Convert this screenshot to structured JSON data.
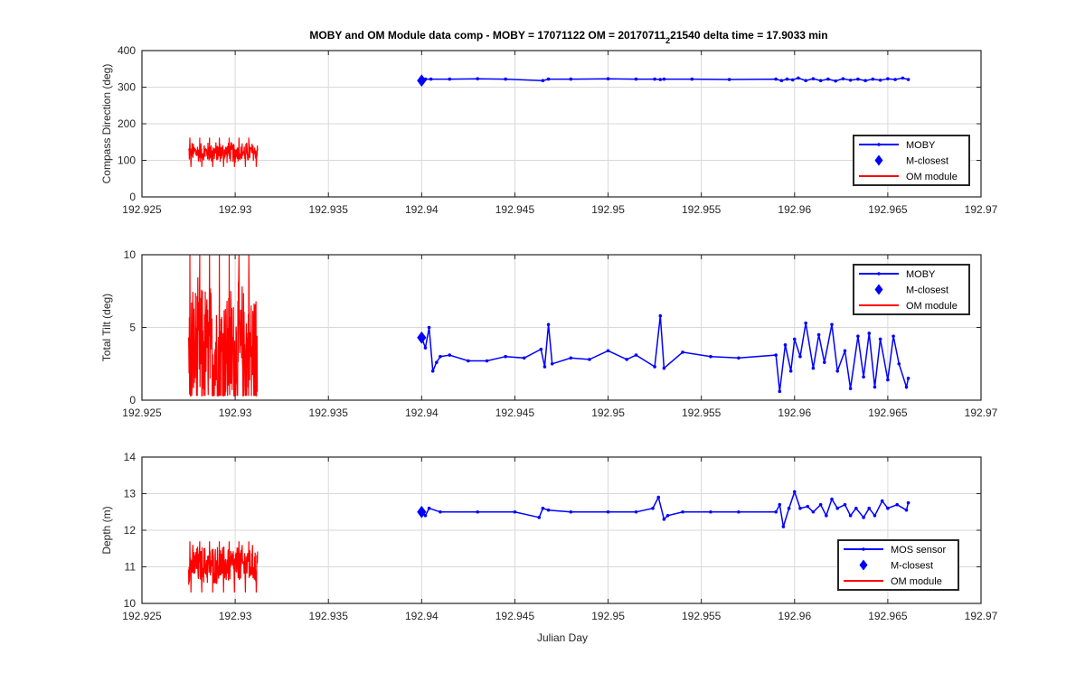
{
  "figure": {
    "title_prefix": "MOBY and OM Module data comp - MOBY = 17071122 OM = 20170711",
    "title_subscript": "2",
    "title_suffix": "21540 delta time = 17.9033 min",
    "xlabel": "Julian Day"
  },
  "colors": {
    "moby": "#0000ff",
    "om": "#ff0000",
    "grid": "#d9d9d9",
    "axis": "#262626"
  },
  "chart_data": [
    {
      "type": "line",
      "ylabel": "Compass Direction (deg)",
      "xlim": [
        192.925,
        192.97
      ],
      "ylim": [
        0,
        400
      ],
      "x_ticks": [
        192.925,
        192.93,
        192.935,
        192.94,
        192.945,
        192.95,
        192.955,
        192.96,
        192.965,
        192.97
      ],
      "x_tick_labels": [
        "192.925",
        "192.93",
        "192.935",
        "192.94",
        "192.945",
        "192.95",
        "192.955",
        "192.96",
        "192.965",
        "192.97"
      ],
      "y_ticks": [
        0,
        100,
        200,
        300,
        400
      ],
      "y_tick_labels": [
        "0",
        "100",
        "200",
        "300",
        "400"
      ],
      "grid": true,
      "legend": {
        "placement": "bottom-right",
        "entries": [
          "MOBY",
          "M-closest",
          "OM module"
        ]
      },
      "series": [
        {
          "name": "MOBY",
          "style": "line-dots",
          "color": "#0000ff",
          "x": [
            192.94,
            192.9402,
            192.9405,
            192.9415,
            192.943,
            192.9445,
            192.9465,
            192.9468,
            192.948,
            192.95,
            192.9515,
            192.9525,
            192.9528,
            192.953,
            192.9545,
            192.9565,
            192.959,
            192.9593,
            192.9596,
            192.9599,
            192.9602,
            192.9606,
            192.961,
            192.9614,
            192.9618,
            192.9622,
            192.9626,
            192.963,
            192.9634,
            192.9638,
            192.9642,
            192.9646,
            192.965,
            192.9654,
            192.9658,
            192.9661
          ],
          "y": [
            318,
            322,
            322,
            322,
            323,
            322,
            318,
            322,
            322,
            323,
            322,
            322,
            321,
            322,
            322,
            321,
            322,
            318,
            322,
            320,
            325,
            318,
            323,
            318,
            322,
            317,
            323,
            319,
            322,
            318,
            322,
            319,
            323,
            321,
            325,
            321
          ]
        },
        {
          "name": "M-closest",
          "style": "diamond",
          "color": "#0000ff",
          "x": [
            192.94
          ],
          "y": [
            318
          ]
        },
        {
          "name": "OM module",
          "style": "noise",
          "color": "#ff0000",
          "x_range": [
            192.9275,
            192.9312
          ],
          "y_range": [
            82,
            162
          ],
          "y_center": 122
        }
      ]
    },
    {
      "type": "line",
      "ylabel": "Total Tilt (deg)",
      "xlim": [
        192.925,
        192.97
      ],
      "ylim": [
        0,
        10
      ],
      "x_ticks": [
        192.925,
        192.93,
        192.935,
        192.94,
        192.945,
        192.95,
        192.955,
        192.96,
        192.965,
        192.97
      ],
      "x_tick_labels": [
        "192.925",
        "192.93",
        "192.935",
        "192.94",
        "192.945",
        "192.95",
        "192.955",
        "192.96",
        "192.965",
        "192.97"
      ],
      "y_ticks": [
        0,
        5,
        10
      ],
      "y_tick_labels": [
        "0",
        "5",
        "10"
      ],
      "grid": true,
      "legend": {
        "placement": "top-right",
        "entries": [
          "MOBY",
          "M-closest",
          "OM module"
        ]
      },
      "series": [
        {
          "name": "MOBY",
          "style": "line-dots",
          "color": "#0000ff",
          "x": [
            192.94,
            192.9402,
            192.9404,
            192.9406,
            192.9408,
            192.941,
            192.9415,
            192.9425,
            192.9435,
            192.9445,
            192.9455,
            192.9464,
            192.9466,
            192.9468,
            192.947,
            192.948,
            192.949,
            192.95,
            192.951,
            192.9515,
            192.9525,
            192.9528,
            192.953,
            192.954,
            192.9555,
            192.957,
            192.959,
            192.9592,
            192.9595,
            192.9598,
            192.96,
            192.9603,
            192.9606,
            192.961,
            192.9613,
            192.9616,
            192.962,
            192.9623,
            192.9627,
            192.963,
            192.9634,
            192.9637,
            192.964,
            192.9643,
            192.9646,
            192.965,
            192.9653,
            192.9656,
            192.966,
            192.9661
          ],
          "y": [
            4.3,
            3.6,
            5.0,
            2.0,
            2.6,
            3.0,
            3.1,
            2.7,
            2.7,
            3.0,
            2.9,
            3.5,
            2.3,
            5.2,
            2.5,
            2.9,
            2.8,
            3.4,
            2.8,
            3.1,
            2.3,
            5.8,
            2.2,
            3.3,
            3.0,
            2.9,
            3.1,
            0.6,
            3.8,
            2.0,
            4.2,
            3.0,
            5.3,
            2.2,
            4.5,
            2.6,
            5.2,
            2.0,
            3.4,
            0.8,
            4.4,
            1.6,
            4.6,
            0.9,
            4.2,
            1.4,
            4.4,
            2.5,
            0.9,
            1.5
          ]
        },
        {
          "name": "M-closest",
          "style": "diamond",
          "color": "#0000ff",
          "x": [
            192.94
          ],
          "y": [
            4.3
          ]
        },
        {
          "name": "OM module",
          "style": "noise",
          "color": "#ff0000",
          "x_range": [
            192.9275,
            192.9312
          ],
          "y_range": [
            0.3,
            10
          ],
          "y_center": 3.2
        }
      ]
    },
    {
      "type": "line",
      "ylabel": "Depth (m)",
      "xlabel": "Julian Day",
      "xlim": [
        192.925,
        192.97
      ],
      "ylim": [
        10,
        14
      ],
      "x_ticks": [
        192.925,
        192.93,
        192.935,
        192.94,
        192.945,
        192.95,
        192.955,
        192.96,
        192.965,
        192.97
      ],
      "x_tick_labels": [
        "192.925",
        "192.93",
        "192.935",
        "192.94",
        "192.945",
        "192.95",
        "192.955",
        "192.96",
        "192.965",
        "192.97"
      ],
      "y_ticks": [
        10,
        11,
        12,
        13,
        14
      ],
      "y_tick_labels": [
        "10",
        "11",
        "12",
        "13",
        "14"
      ],
      "grid": true,
      "legend": {
        "placement": "bottom-right",
        "entries": [
          "MOS sensor",
          "M-closest",
          "OM module"
        ]
      },
      "series": [
        {
          "name": "MOS sensor",
          "style": "line-dots",
          "color": "#0000ff",
          "x": [
            192.94,
            192.9402,
            192.9404,
            192.941,
            192.943,
            192.945,
            192.9463,
            192.9465,
            192.9468,
            192.948,
            192.95,
            192.9515,
            192.9524,
            192.9527,
            192.953,
            192.9532,
            192.954,
            192.9555,
            192.957,
            192.959,
            192.9592,
            192.9594,
            192.9597,
            192.96,
            192.9603,
            192.9607,
            192.961,
            192.9614,
            192.9617,
            192.962,
            192.9623,
            192.9627,
            192.963,
            192.9633,
            192.9637,
            192.964,
            192.9643,
            192.9647,
            192.965,
            192.9655,
            192.966,
            192.9661
          ],
          "y": [
            12.5,
            12.4,
            12.6,
            12.5,
            12.5,
            12.5,
            12.35,
            12.6,
            12.55,
            12.5,
            12.5,
            12.5,
            12.6,
            12.9,
            12.3,
            12.4,
            12.5,
            12.5,
            12.5,
            12.5,
            12.7,
            12.1,
            12.6,
            13.05,
            12.6,
            12.65,
            12.5,
            12.7,
            12.4,
            12.85,
            12.6,
            12.7,
            12.4,
            12.6,
            12.35,
            12.6,
            12.4,
            12.8,
            12.6,
            12.7,
            12.55,
            12.75
          ]
        },
        {
          "name": "M-closest",
          "style": "diamond",
          "color": "#0000ff",
          "x": [
            192.94
          ],
          "y": [
            12.5
          ]
        },
        {
          "name": "OM module",
          "style": "noise",
          "color": "#ff0000",
          "x_range": [
            192.9275,
            192.9312
          ],
          "y_range": [
            10.3,
            11.7
          ],
          "y_center": 11.05
        }
      ]
    }
  ]
}
